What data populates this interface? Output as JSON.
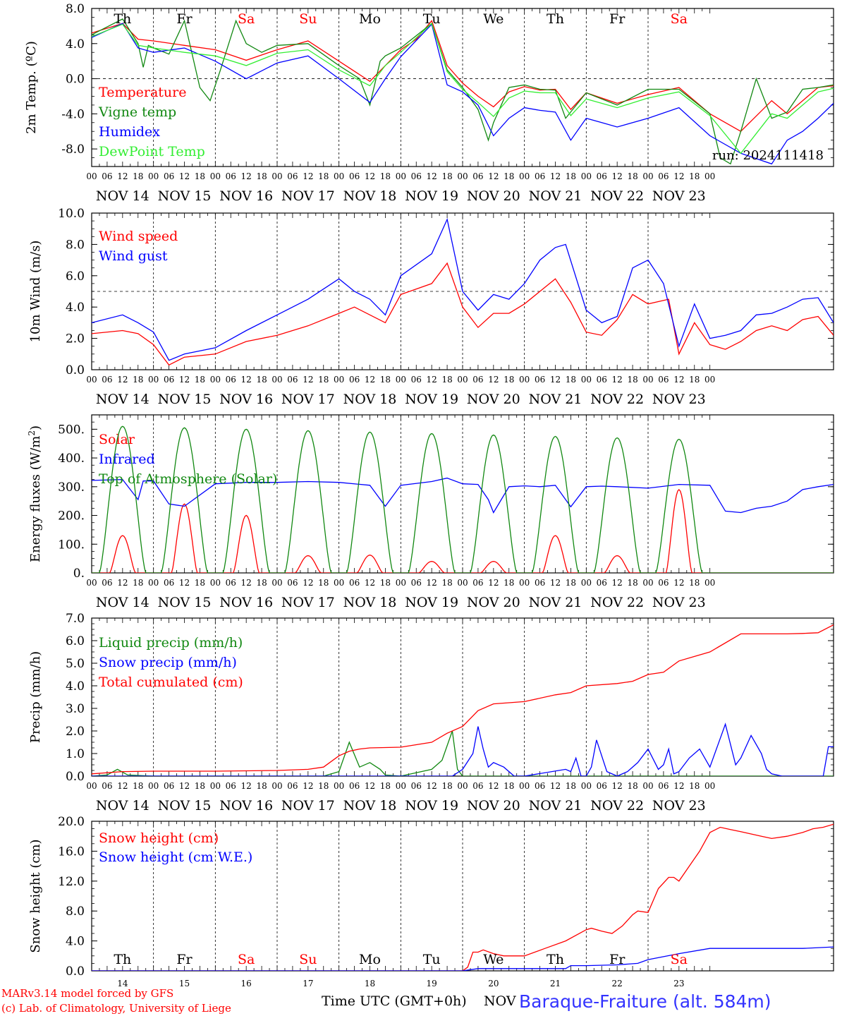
{
  "days": [
    "Th",
    "Fr",
    "Sa",
    "Su",
    "Mo",
    "Tu",
    "We",
    "Th",
    "Fr",
    "Sa"
  ],
  "day_colors": [
    "#000000",
    "#000000",
    "#ff0000",
    "#ff0000",
    "#000000",
    "#000000",
    "#000000",
    "#000000",
    "#000000",
    "#ff0000"
  ],
  "dates": [
    "NOV 14",
    "NOV 15",
    "NOV 16",
    "NOV 17",
    "NOV 18",
    "NOV 19",
    "NOV 20",
    "NOV 21",
    "NOV 22",
    "NOV 23"
  ],
  "hour_ticks": [
    "00",
    "06",
    "12",
    "18"
  ],
  "end_hour": "00",
  "bottom": {
    "day_numbers": [
      "14",
      "15",
      "16",
      "17",
      "18",
      "19",
      "20",
      "21",
      "22",
      "23"
    ],
    "xlabel": "Time UTC (GMT+0h)",
    "month": "NOV",
    "station": "Baraque-Fraiture (alt. 584m)",
    "credit_line1": "MARv3.14 model forced by GFS",
    "credit_line2": "(c) Lab. of Climatology, University of Liege"
  },
  "chart_data": [
    {
      "id": "temp",
      "type": "line",
      "ylabel": "2m Temp. (ºC)",
      "ylim": [
        -10,
        8
      ],
      "yticks": [
        8,
        4,
        0,
        -4,
        -8
      ],
      "ytick_labels": [
        "8.0",
        "4.0",
        "0.0",
        "-4.0",
        "-8.0"
      ],
      "ref_line": 0,
      "x_unit": "hours since Nov 14 00 UTC",
      "annotation": "run: 2024111418",
      "series": [
        {
          "name": "Temperature",
          "color": "#ff0000",
          "x": [
            0,
            12,
            18,
            24,
            36,
            48,
            60,
            72,
            84,
            96,
            108,
            120,
            126,
            132,
            138,
            144,
            150,
            156,
            162,
            168,
            174,
            180,
            186,
            192,
            204,
            216,
            228,
            240,
            252,
            264,
            270,
            276,
            282,
            288
          ],
          "y": [
            5.2,
            6.3,
            4.5,
            4.3,
            3.8,
            3.3,
            2.1,
            3.3,
            4.3,
            2.0,
            -0.3,
            3.3,
            4.5,
            6.6,
            1.5,
            -0.5,
            -2.0,
            -3.2,
            -1.5,
            -0.9,
            -1.3,
            -1.2,
            -3.5,
            -1.6,
            -2.8,
            -1.8,
            -1.0,
            -4.0,
            -6.0,
            -2.5,
            -4.0,
            -2.5,
            -1.0,
            -0.8
          ]
        },
        {
          "name": "Vigne temp",
          "color": "#118811",
          "x": [
            0,
            12,
            18,
            20,
            22,
            24,
            30,
            36,
            42,
            46,
            50,
            56,
            60,
            66,
            72,
            84,
            96,
            104,
            108,
            112,
            114,
            120,
            132,
            138,
            144,
            150,
            154,
            156,
            162,
            168,
            174,
            180,
            184,
            192,
            204,
            216,
            228,
            240,
            244,
            248,
            252,
            258,
            264,
            270,
            276,
            282,
            288
          ],
          "y": [
            5.0,
            6.8,
            4.0,
            1.3,
            3.8,
            3.5,
            2.8,
            6.6,
            -1.0,
            -2.5,
            1.0,
            6.6,
            4.0,
            3.0,
            3.8,
            4.0,
            1.5,
            0.0,
            -3.0,
            2.0,
            2.6,
            3.5,
            6.3,
            1.0,
            -1.0,
            -3.5,
            -7.0,
            -5.0,
            -1.0,
            -0.7,
            -1.2,
            -1.3,
            -4.5,
            -1.6,
            -3.0,
            -1.2,
            -1.2,
            -4.0,
            -9.0,
            -9.7,
            -6.0,
            0.0,
            -4.5,
            -3.8,
            -1.2,
            -1.0,
            -0.7
          ]
        },
        {
          "name": "Humidex",
          "color": "#0000ff",
          "x": [
            0,
            12,
            18,
            24,
            36,
            48,
            60,
            72,
            84,
            96,
            108,
            114,
            120,
            132,
            138,
            144,
            150,
            156,
            162,
            168,
            174,
            180,
            186,
            192,
            198,
            204,
            216,
            228,
            240,
            252,
            264,
            270,
            276,
            282,
            288
          ],
          "y": [
            4.7,
            6.3,
            3.5,
            3.0,
            3.5,
            2.0,
            0.0,
            1.8,
            2.6,
            0.0,
            -2.7,
            0.0,
            2.5,
            6.2,
            -0.7,
            -1.5,
            -3.0,
            -6.5,
            -4.5,
            -3.3,
            -3.6,
            -3.8,
            -7.0,
            -4.5,
            -5.0,
            -5.5,
            -4.5,
            -3.3,
            -6.5,
            -8.5,
            -9.7,
            -7.0,
            -6.0,
            -4.5,
            -2.8
          ]
        },
        {
          "name": "DewPoint Temp",
          "color": "#33ee33",
          "x": [
            0,
            12,
            18,
            24,
            36,
            48,
            60,
            72,
            84,
            96,
            108,
            114,
            120,
            132,
            138,
            144,
            150,
            156,
            162,
            168,
            174,
            180,
            186,
            192,
            204,
            216,
            228,
            240,
            252,
            264,
            270,
            276,
            282,
            288
          ],
          "y": [
            4.8,
            6.2,
            3.8,
            3.5,
            3.0,
            2.6,
            1.5,
            2.9,
            3.3,
            1.0,
            -0.8,
            1.5,
            3.0,
            6.3,
            0.8,
            -1.2,
            -2.7,
            -4.3,
            -2.2,
            -1.4,
            -1.6,
            -1.6,
            -4.2,
            -2.3,
            -3.3,
            -2.2,
            -1.5,
            -4.2,
            -8.5,
            -4.0,
            -4.5,
            -3.0,
            -1.5,
            -1.1
          ]
        }
      ]
    },
    {
      "id": "wind",
      "type": "line",
      "ylabel": "10m Wind (m/s)",
      "ylim": [
        0,
        10
      ],
      "yticks": [
        10,
        8,
        6,
        4,
        2,
        0
      ],
      "ytick_labels": [
        "10.0",
        "8.0",
        "6.0",
        "4.0",
        "2.0",
        "0.0"
      ],
      "ref_line": 5,
      "x_unit": "hours since Nov 14 00 UTC",
      "series": [
        {
          "name": "Wind speed",
          "color": "#ff0000",
          "x": [
            0,
            12,
            18,
            24,
            30,
            36,
            48,
            60,
            72,
            84,
            96,
            102,
            108,
            114,
            120,
            132,
            138,
            144,
            150,
            156,
            162,
            168,
            174,
            180,
            186,
            192,
            198,
            204,
            210,
            216,
            224,
            228,
            234,
            240,
            246,
            252,
            258,
            264,
            270,
            276,
            282,
            288
          ],
          "y": [
            2.3,
            2.5,
            2.3,
            1.6,
            0.3,
            0.8,
            1.0,
            1.8,
            2.2,
            2.8,
            3.6,
            4.0,
            3.5,
            3.0,
            4.8,
            5.5,
            6.8,
            4.0,
            2.7,
            3.6,
            3.6,
            4.2,
            5.0,
            5.8,
            4.3,
            2.4,
            2.2,
            3.2,
            4.8,
            4.2,
            4.5,
            1.0,
            3.0,
            1.6,
            1.3,
            1.8,
            2.5,
            2.8,
            2.5,
            3.2,
            3.4,
            2.2
          ]
        },
        {
          "name": "Wind gust",
          "color": "#0000ff",
          "x": [
            0,
            12,
            18,
            24,
            30,
            36,
            48,
            60,
            72,
            84,
            96,
            102,
            108,
            114,
            120,
            132,
            138,
            144,
            150,
            156,
            162,
            168,
            174,
            180,
            184,
            192,
            198,
            204,
            210,
            216,
            222,
            228,
            234,
            240,
            246,
            252,
            258,
            264,
            270,
            276,
            282,
            288
          ],
          "y": [
            3.0,
            3.5,
            3.0,
            2.4,
            0.6,
            1.0,
            1.4,
            2.5,
            3.5,
            4.5,
            5.8,
            5.0,
            4.5,
            3.5,
            6.0,
            7.4,
            9.6,
            5.0,
            3.8,
            4.8,
            4.5,
            5.5,
            7.0,
            7.8,
            8.0,
            3.8,
            3.0,
            3.4,
            6.5,
            7.0,
            5.5,
            1.5,
            4.2,
            2.0,
            2.2,
            2.5,
            3.5,
            3.6,
            4.0,
            4.5,
            4.6,
            3.0
          ]
        }
      ]
    },
    {
      "id": "flux",
      "type": "line",
      "ylabel": "Energy fluxes (W/m2)",
      "ylim": [
        0,
        550
      ],
      "yticks": [
        500,
        400,
        300,
        200,
        100,
        0
      ],
      "ytick_labels": [
        "500.",
        "400.",
        "300.",
        "200.",
        "100.",
        "0."
      ],
      "x_unit": "hours since Nov 14 00 UTC",
      "series": [
        {
          "name": "Solar",
          "color": "#ff0000",
          "peaks": [
            130,
            240,
            200,
            60,
            62,
            40,
            40,
            130,
            60,
            290
          ]
        },
        {
          "name": "Infrared",
          "color": "#0000ff",
          "x": [
            0,
            12,
            18,
            20,
            24,
            30,
            36,
            48,
            60,
            72,
            84,
            96,
            108,
            114,
            120,
            132,
            138,
            144,
            150,
            154,
            156,
            162,
            168,
            174,
            180,
            186,
            192,
            198,
            204,
            216,
            228,
            240,
            246,
            252,
            258,
            264,
            270,
            276,
            282,
            288
          ],
          "y": [
            322,
            325,
            255,
            320,
            320,
            240,
            232,
            310,
            315,
            315,
            318,
            315,
            305,
            232,
            305,
            318,
            330,
            310,
            308,
            255,
            210,
            300,
            303,
            300,
            305,
            230,
            300,
            302,
            300,
            295,
            308,
            305,
            215,
            210,
            225,
            232,
            250,
            290,
            300,
            308
          ]
        },
        {
          "name": "Top of Atmosphere (Solar)",
          "color": "#118811",
          "peaks": [
            510,
            505,
            500,
            495,
            490,
            485,
            480,
            475,
            470,
            465
          ]
        }
      ]
    },
    {
      "id": "precip",
      "type": "line",
      "ylabel": "Precip (mm/h)",
      "ylim": [
        0,
        7
      ],
      "yticks": [
        7,
        6,
        5,
        4,
        3,
        2,
        1,
        0
      ],
      "ytick_labels": [
        "7.0",
        "6.0",
        "5.0",
        "4.0",
        "3.0",
        "2.0",
        "1.0",
        "0.0"
      ],
      "x_unit": "hours since Nov 14 00 UTC",
      "series": [
        {
          "name": "Liquid precip (mm/h)",
          "color": "#118811",
          "x": [
            0,
            6,
            10,
            14,
            24,
            90,
            96,
            100,
            104,
            108,
            112,
            114,
            120,
            132,
            136,
            140,
            142,
            144,
            150,
            288
          ],
          "y": [
            0,
            0.05,
            0.3,
            0.05,
            0,
            0,
            0.2,
            1.5,
            0.4,
            0.6,
            0.3,
            0.05,
            0,
            0.3,
            0.7,
            2.0,
            0.3,
            0,
            0,
            0
          ]
        },
        {
          "name": "Snow precip (mm/h)",
          "color": "#0000ff",
          "x": [
            0,
            140,
            144,
            148,
            150,
            152,
            154,
            156,
            160,
            164,
            168,
            184,
            186,
            188,
            190,
            192,
            194,
            196,
            200,
            204,
            208,
            212,
            216,
            220,
            222,
            224,
            226,
            228,
            232,
            236,
            240,
            246,
            250,
            252,
            256,
            260,
            262,
            264,
            268,
            272,
            274,
            276,
            278,
            282,
            284,
            286,
            288
          ],
          "y": [
            0,
            0,
            0.3,
            1.0,
            2.2,
            1.2,
            0.4,
            0.6,
            0.4,
            0,
            0,
            0.3,
            0.2,
            0.8,
            0,
            0,
            0.4,
            1.6,
            0.2,
            0,
            0.2,
            0.6,
            1.2,
            0.3,
            0.5,
            1.2,
            0.1,
            0.2,
            0.8,
            1.2,
            0.4,
            2.3,
            0.5,
            0.8,
            1.8,
            1.0,
            0.3,
            0.1,
            0,
            0,
            0,
            0,
            0,
            0,
            0,
            1.3,
            1.3
          ]
        },
        {
          "name": "Total cumulated (cm)",
          "color": "#ff0000",
          "x": [
            0,
            12,
            24,
            48,
            72,
            84,
            90,
            96,
            100,
            104,
            108,
            120,
            132,
            138,
            144,
            150,
            156,
            168,
            180,
            186,
            192,
            204,
            210,
            216,
            222,
            228,
            234,
            240,
            252,
            264,
            270,
            276,
            282,
            288
          ],
          "y": [
            0.1,
            0.2,
            0.22,
            0.22,
            0.25,
            0.3,
            0.4,
            0.9,
            1.1,
            1.2,
            1.25,
            1.28,
            1.5,
            1.9,
            2.2,
            2.9,
            3.2,
            3.3,
            3.6,
            3.7,
            4.0,
            4.1,
            4.2,
            4.5,
            4.6,
            5.1,
            5.3,
            5.5,
            6.3,
            6.3,
            6.3,
            6.32,
            6.35,
            6.7
          ]
        }
      ]
    },
    {
      "id": "snow",
      "type": "line",
      "ylabel": "Snow height (cm)",
      "ylim": [
        0,
        20
      ],
      "yticks": [
        20,
        16,
        12,
        8,
        4,
        0
      ],
      "ytick_labels": [
        "20.0",
        "16.0",
        "12.0",
        "8.0",
        "4.0",
        "0.0"
      ],
      "x_unit": "hours since Nov 14 00 UTC",
      "series": [
        {
          "name": "Snow height (cm)",
          "color": "#ff0000",
          "x": [
            0,
            144,
            146,
            148,
            150,
            152,
            156,
            160,
            168,
            176,
            184,
            192,
            194,
            198,
            202,
            206,
            210,
            212,
            216,
            220,
            224,
            226,
            228,
            232,
            236,
            240,
            244,
            248,
            252,
            256,
            260,
            264,
            270,
            276,
            280,
            284,
            288
          ],
          "y": [
            0,
            0,
            0.5,
            2.5,
            2.5,
            2.8,
            2.3,
            2.0,
            2.0,
            3.0,
            4.0,
            5.5,
            5.7,
            5.3,
            5.0,
            6.0,
            7.5,
            8.0,
            7.8,
            11.0,
            12.5,
            12.5,
            12.0,
            14.0,
            16.0,
            18.5,
            19.2,
            18.9,
            18.6,
            18.3,
            18.0,
            17.7,
            18.0,
            18.5,
            19.0,
            19.2,
            19.6
          ]
        },
        {
          "name": "Snow height (cm W.E.)",
          "color": "#0000ff",
          "x": [
            0,
            144,
            150,
            168,
            184,
            186,
            192,
            204,
            212,
            216,
            228,
            240,
            252,
            264,
            276,
            288
          ],
          "y": [
            0,
            0,
            0.3,
            0.3,
            0.3,
            0.7,
            0.7,
            0.8,
            1.0,
            1.5,
            2.3,
            3.0,
            3.0,
            3.0,
            3.0,
            3.2
          ]
        }
      ]
    }
  ]
}
